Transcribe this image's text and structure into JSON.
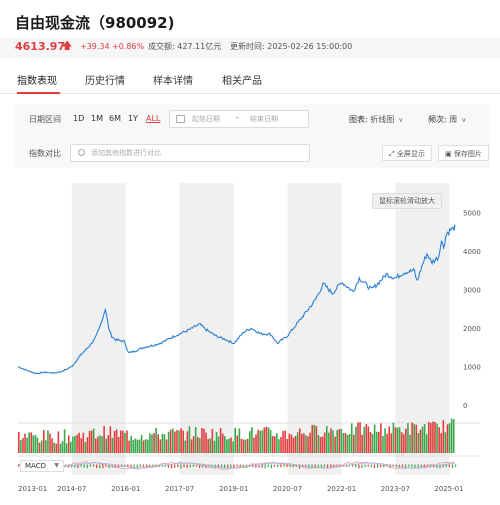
{
  "title": "自由现金流（980092)",
  "quote": {
    "price": "4613.97",
    "change": "+39.34",
    "change_pct": "+0.86%",
    "amount": "成交额: 427.11亿元",
    "update_time": "更新时间: 2025-02-26 15:00:00",
    "up_color": "#e23d3d"
  },
  "tabs": [
    {
      "label": "指数表现",
      "active": true
    },
    {
      "label": "历史行情",
      "active": false
    },
    {
      "label": "样本详情",
      "active": false
    },
    {
      "label": "相关产品",
      "active": false
    }
  ],
  "controls": {
    "date_range_label": "日期区间",
    "ranges": [
      "1D",
      "1M",
      "6M",
      "1Y",
      "ALL"
    ],
    "active_range": "ALL",
    "start_placeholder": "起始日期",
    "dash": "-",
    "end_placeholder": "结束日期",
    "chart_type_label": "图表:",
    "chart_type_value": "折线图",
    "frequency_label": "频次:",
    "frequency_value": "周",
    "compare_label": "指数对比",
    "compare_placeholder": "添加其他指数进行对比",
    "fullscreen_label": "全屏显示",
    "save_image_label": "保存图片"
  },
  "chart": {
    "tooltip": "鼠标滚轮滑动放大",
    "macd_label": "MACD",
    "line_color": "#2a7fd4"
  },
  "chart_data": {
    "type": "line",
    "title": "",
    "x_ticks": [
      "2013-01",
      "2014-07",
      "2016-01",
      "2017-07",
      "2019-01",
      "2020-07",
      "2022-01",
      "2023-07",
      "2025-01"
    ],
    "y_ticks": [
      "0",
      "1000",
      "2000",
      "3000",
      "4000",
      "5000"
    ],
    "ylim": [
      0,
      5200
    ],
    "xlim": [
      "2013-01-01",
      "2025-02-26"
    ],
    "series": [
      {
        "x": [
          "2013-01-01",
          "2013-04-01",
          "2013-07-01",
          "2013-10-01",
          "2014-01-01",
          "2014-04-01",
          "2014-07-01",
          "2014-10-01",
          "2015-01-01",
          "2015-03-01",
          "2015-04-15",
          "2015-06-10",
          "2015-07-10",
          "2015-08-10",
          "2015-09-15",
          "2015-12-20",
          "2016-01-28",
          "2016-04-01",
          "2016-07-01",
          "2016-10-01",
          "2017-01-01",
          "2017-04-01",
          "2017-07-01",
          "2017-10-01",
          "2018-01-20",
          "2018-04-01",
          "2018-07-01",
          "2018-10-15",
          "2019-01-03",
          "2019-04-15",
          "2019-07-01",
          "2019-10-01",
          "2020-01-10",
          "2020-03-20",
          "2020-07-01",
          "2020-10-01",
          "2021-01-01",
          "2021-04-01",
          "2021-07-01",
          "2021-10-01",
          "2022-01-01",
          "2022-04-27",
          "2022-07-01",
          "2022-10-31",
          "2023-01-01",
          "2023-04-01",
          "2023-07-01",
          "2023-10-01",
          "2024-01-10",
          "2024-02-05",
          "2024-04-01",
          "2024-05-20",
          "2024-07-01",
          "2024-09-15",
          "2024-10-08",
          "2024-11-01",
          "2024-12-01",
          "2025-01-10",
          "2025-02-26"
        ],
        "y": [
          1000,
          900,
          820,
          850,
          830,
          880,
          1000,
          1300,
          1550,
          1750,
          2050,
          2520,
          2000,
          1800,
          1700,
          1650,
          1350,
          1400,
          1500,
          1550,
          1620,
          1750,
          1850,
          1950,
          2100,
          1950,
          1800,
          1700,
          1600,
          1900,
          2000,
          1850,
          1850,
          1600,
          1800,
          2100,
          2400,
          2700,
          3150,
          2900,
          3200,
          2950,
          3300,
          3000,
          3150,
          3400,
          3300,
          3450,
          3500,
          3200,
          3650,
          3950,
          3700,
          3850,
          4300,
          4100,
          4450,
          4550,
          4613.97
        ]
      }
    ],
    "volume_colors": {
      "up": "#e23d3d",
      "down": "#3aa84a"
    },
    "grid": false
  }
}
